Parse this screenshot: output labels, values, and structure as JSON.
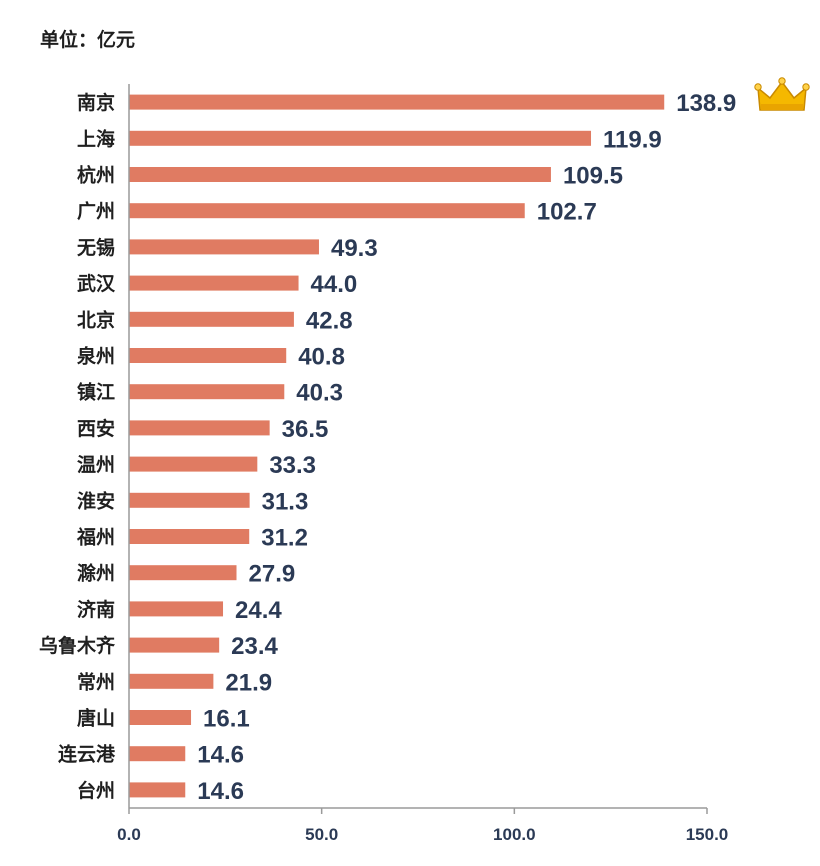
{
  "unit_label": "单位：亿元",
  "chart_data": {
    "type": "bar",
    "orientation": "horizontal",
    "categories": [
      "南京",
      "上海",
      "杭州",
      "广州",
      "无锡",
      "武汉",
      "北京",
      "泉州",
      "镇江",
      "西安",
      "温州",
      "淮安",
      "福州",
      "滁州",
      "济南",
      "乌鲁木齐",
      "常州",
      "唐山",
      "连云港",
      "台州"
    ],
    "values": [
      138.9,
      119.9,
      109.5,
      102.7,
      49.3,
      44.0,
      42.8,
      40.8,
      40.3,
      36.5,
      33.3,
      31.3,
      31.2,
      27.9,
      24.4,
      23.4,
      21.9,
      16.1,
      14.6,
      14.6
    ],
    "value_labels": [
      "138.9",
      "119.9",
      "109.5",
      "102.7",
      "49.3",
      "44.0",
      "42.8",
      "40.8",
      "40.3",
      "36.5",
      "33.3",
      "31.3",
      "31.2",
      "27.9",
      "24.4",
      "23.4",
      "21.9",
      "16.1",
      "14.6",
      "14.6"
    ],
    "xlim": [
      0,
      150
    ],
    "xticks": [
      0,
      50,
      100,
      150
    ],
    "xtick_labels": [
      "0.0",
      "50.0",
      "100.0",
      "150.0"
    ],
    "bar_color": "#e07b62",
    "grid": false,
    "decoration": "crown-icon beside top bar"
  }
}
